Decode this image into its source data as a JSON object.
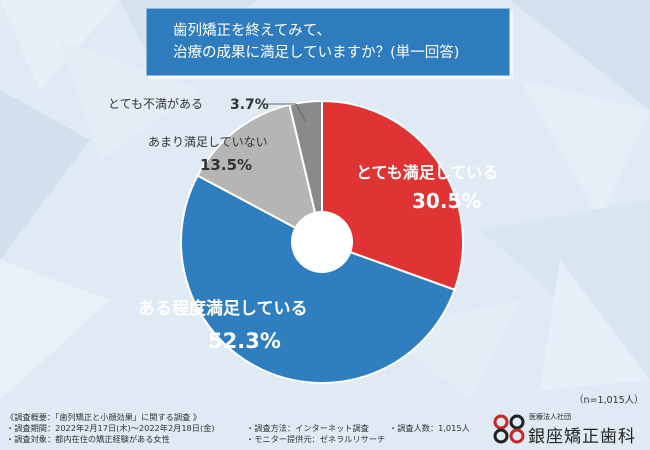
{
  "title": {
    "line1": "歯列矯正を終えてみて、",
    "line2": "治療の成果に満足していますか？(単一回答)"
  },
  "chart_data": {
    "type": "pie",
    "variant": "donut",
    "slices": [
      {
        "label": "とても満足している",
        "value": 30.5,
        "display": "30.5%",
        "color": "#e03434"
      },
      {
        "label": "ある程度満足している",
        "value": 52.3,
        "display": "52.3%",
        "color": "#2f7fc0"
      },
      {
        "label": "あまり満足していない",
        "value": 13.5,
        "display": "13.5%",
        "color": "#b5b5b5"
      },
      {
        "label": "とても不満がある",
        "value": 3.7,
        "display": "3.7%",
        "color": "#8a8a8a"
      }
    ]
  },
  "n_label": "（n=1,015人）",
  "footer": {
    "overview": "《調査概要：「歯列矯正と小顔効果」に関する調査 》",
    "period": "・調査期間：2022年2月17日(木)〜2022年2月18日(金)",
    "target": "・調査対象：都内在住の矯正経験がある女性",
    "method": "・調査方法：インターネット調査",
    "count": "・調査人数：1,015人",
    "provider": "・モニター提供元：ゼネラルリサーチ"
  },
  "logo": {
    "small": "医療法人社団",
    "name": "銀座矯正歯科"
  }
}
